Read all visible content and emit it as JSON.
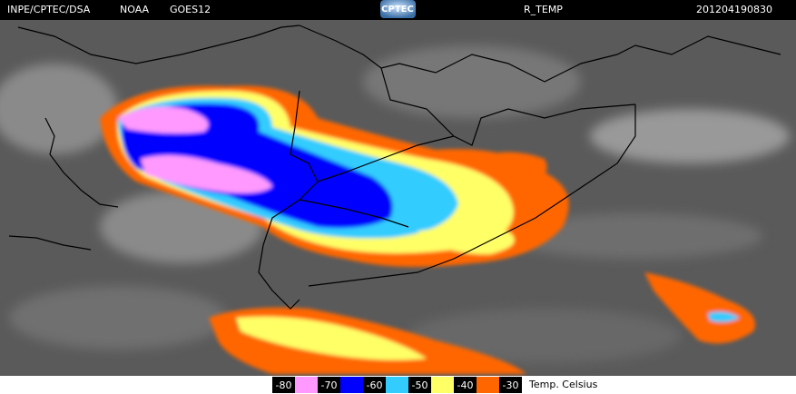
{
  "header": {
    "source": "INPE/CPTEC/DSA",
    "agency": "NOAA",
    "satellite": "GOES12",
    "logo": "CPTEC",
    "product": "R_TEMP",
    "timestamp": "201204190830"
  },
  "legend": {
    "labels": [
      -80,
      -70,
      -60,
      -50,
      -40,
      -30
    ],
    "colors": [
      "#ff99ff",
      "#0000ff",
      "#33ccff",
      "#ffff66",
      "#ff6600"
    ],
    "unit": "Temp. Celsius"
  }
}
